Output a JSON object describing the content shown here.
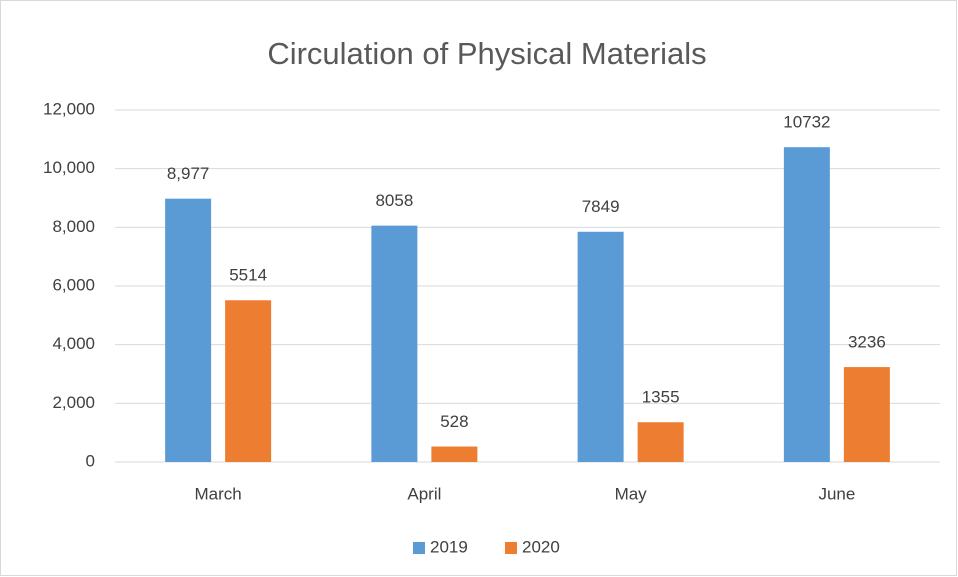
{
  "chart_data": {
    "type": "bar",
    "title": "Circulation of Physical Materials",
    "categories": [
      "March",
      "April",
      "May",
      "June"
    ],
    "series": [
      {
        "name": "2019",
        "color": "#5b9bd5",
        "values": [
          8977,
          8058,
          7849,
          10732
        ],
        "value_labels": [
          "8,977",
          "8058",
          "7849",
          "10732"
        ]
      },
      {
        "name": "2020",
        "color": "#ed7d31",
        "values": [
          5514,
          528,
          1355,
          3236
        ]
      }
    ],
    "ylim": [
      0,
      12000
    ],
    "yticks": [
      0,
      {
        "value": 2000,
        "label": "2,000"
      },
      {
        "value": 4000,
        "label": "4,000"
      },
      {
        "value": 6000,
        "label": "6,000"
      },
      {
        "value": 8000,
        "label": "8,000"
      },
      {
        "value": 10000,
        "label": "10,000"
      },
      {
        "value": 12000,
        "label": "12,000"
      }
    ],
    "grid": true,
    "legend": "bottom"
  }
}
